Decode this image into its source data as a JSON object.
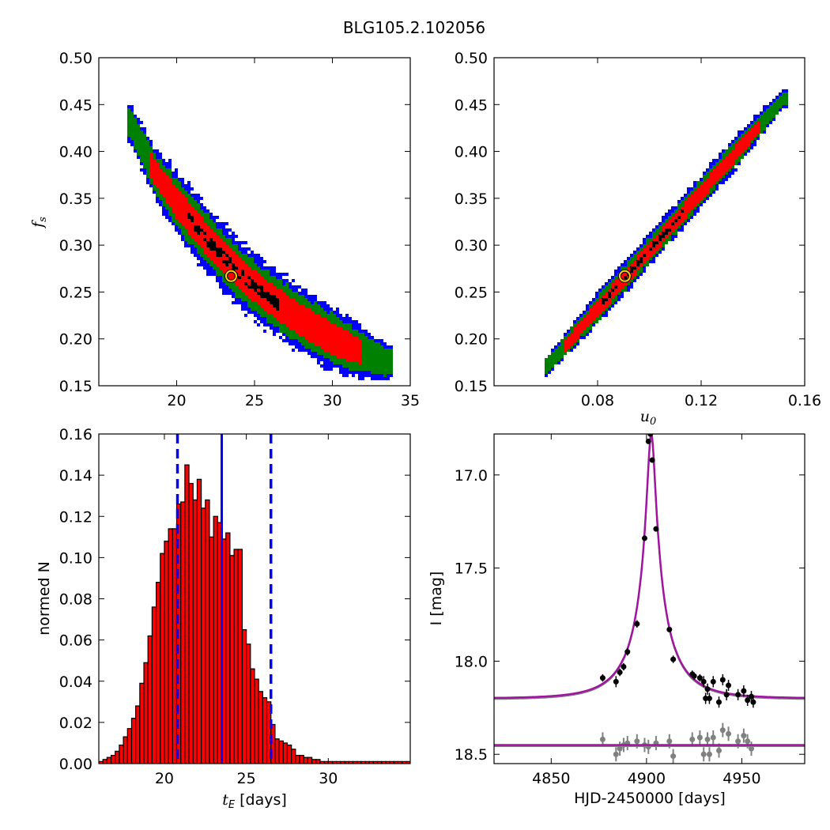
{
  "figure_title": "BLG105.2.102056",
  "colors": {
    "outer": "#0000ff",
    "mid": "#008000",
    "inner": "#ff0000",
    "core": "#000000",
    "best": "#ffd200",
    "hist": "#ff0000",
    "guide": "#0000ff",
    "model": "#a014a0",
    "data": "#000000",
    "residual": "#808080"
  },
  "chart_data": [
    {
      "type": "heatmap",
      "name": "fs-vs-tE",
      "xlim": [
        15,
        35
      ],
      "ylim": [
        0.15,
        0.5
      ],
      "xticks": [
        "20",
        "25",
        "30",
        "35"
      ],
      "xtick_values": [
        20,
        25,
        30,
        35
      ],
      "yticks": [
        "0.15",
        "0.20",
        "0.25",
        "0.30",
        "0.35",
        "0.40",
        "0.45",
        "0.50"
      ],
      "ytick_values": [
        0.15,
        0.2,
        0.25,
        0.3,
        0.35,
        0.4,
        0.45,
        0.5
      ],
      "ylabel": "f",
      "ylabel_sub": "s",
      "ridge_x": [
        17,
        18.5,
        20,
        22,
        24,
        26,
        28,
        30,
        32,
        33.5
      ],
      "ridge_y": [
        0.43,
        0.38,
        0.345,
        0.305,
        0.27,
        0.243,
        0.22,
        0.2,
        0.185,
        0.175
      ],
      "best": {
        "x": 23.5,
        "y": 0.267
      }
    },
    {
      "type": "heatmap",
      "name": "fs-vs-u0",
      "xlim": [
        0.04,
        0.16
      ],
      "ylim": [
        0.15,
        0.5
      ],
      "xticks": [
        "0.08",
        "0.12",
        "0.16"
      ],
      "xtick_values": [
        0.08,
        0.12,
        0.16
      ],
      "yticks": [
        "0.15",
        "0.20",
        "0.25",
        "0.30",
        "0.35",
        "0.40",
        "0.45",
        "0.50"
      ],
      "ytick_values": [
        0.15,
        0.2,
        0.25,
        0.3,
        0.35,
        0.4,
        0.45,
        0.5
      ],
      "xlabel": "u",
      "xlabel_sub": "0",
      "ridge_x": [
        0.06,
        0.152
      ],
      "ridge_y": [
        0.17,
        0.457
      ],
      "best": {
        "x": 0.0905,
        "y": 0.267
      }
    },
    {
      "type": "bar",
      "name": "tE-histogram",
      "xlabel_italic": "t",
      "xlabel_sub": "E",
      "xlabel_rest": " [days]",
      "ylabel": "normed N",
      "xlim": [
        16,
        35
      ],
      "ylim": [
        0,
        0.16
      ],
      "xticks": [
        "20",
        "25",
        "30"
      ],
      "xtick_values": [
        20,
        25,
        30
      ],
      "yticks": [
        "0.00",
        "0.02",
        "0.04",
        "0.06",
        "0.08",
        "0.10",
        "0.12",
        "0.14",
        "0.16"
      ],
      "ytick_values": [
        0,
        0.02,
        0.04,
        0.06,
        0.08,
        0.1,
        0.12,
        0.14,
        0.16
      ],
      "bin_start": 16,
      "bin_width": 0.25,
      "values": [
        0.001,
        0.002,
        0.003,
        0.004,
        0.006,
        0.009,
        0.013,
        0.017,
        0.022,
        0.028,
        0.039,
        0.049,
        0.062,
        0.076,
        0.088,
        0.102,
        0.108,
        0.114,
        0.114,
        0.126,
        0.127,
        0.145,
        0.136,
        0.128,
        0.138,
        0.124,
        0.128,
        0.11,
        0.12,
        0.117,
        0.109,
        0.112,
        0.101,
        0.104,
        0.104,
        0.065,
        0.058,
        0.046,
        0.041,
        0.035,
        0.032,
        0.03,
        0.019,
        0.012,
        0.011,
        0.01,
        0.009,
        0.007,
        0.004,
        0.004,
        0.003,
        0.003,
        0.002,
        0.002,
        0.001,
        0.001,
        0.001,
        0.001,
        0.001,
        0.001,
        0.001,
        0.001,
        0.001,
        0.001,
        0.001,
        0.001,
        0.001,
        0.001,
        0.001,
        0.001,
        0.001,
        0.001,
        0.001,
        0.001,
        0.001,
        0.001
      ],
      "median": 23.5,
      "lower": 20.8,
      "upper": 26.5
    },
    {
      "type": "line",
      "name": "light-curve",
      "xlabel": "HJD-2450000 [days]",
      "ylabel": "I [mag]",
      "xlim": [
        4820,
        4983
      ],
      "ylim": [
        18.55,
        16.78
      ],
      "xticks": [
        "4850",
        "4900",
        "4950"
      ],
      "xtick_values": [
        4850,
        4900,
        4950
      ],
      "yticks": [
        "17.0",
        "17.5",
        "18.0",
        "18.5"
      ],
      "ytick_values": [
        17,
        17.5,
        18,
        18.5
      ],
      "model": {
        "t0": 4902.5,
        "u0": 0.09,
        "tE": 23.5,
        "base": 18.2,
        "peak": 16.78
      },
      "points": [
        {
          "t": 4877,
          "m": 18.09,
          "e": 0.02
        },
        {
          "t": 4884,
          "m": 18.11,
          "e": 0.03
        },
        {
          "t": 4886,
          "m": 18.06,
          "e": 0.02
        },
        {
          "t": 4888,
          "m": 18.03,
          "e": 0.02
        },
        {
          "t": 4890,
          "m": 17.95,
          "e": 0.02
        },
        {
          "t": 4895,
          "m": 17.8,
          "e": 0.02
        },
        {
          "t": 4899,
          "m": 17.34,
          "e": 0.01
        },
        {
          "t": 4901,
          "m": 16.82,
          "e": 0.01
        },
        {
          "t": 4902,
          "m": 16.78,
          "e": 0.01
        },
        {
          "t": 4903,
          "m": 16.92,
          "e": 0.01
        },
        {
          "t": 4905,
          "m": 17.29,
          "e": 0.01
        },
        {
          "t": 4912,
          "m": 17.83,
          "e": 0.01
        },
        {
          "t": 4914,
          "m": 17.99,
          "e": 0.02
        },
        {
          "t": 4924,
          "m": 18.07,
          "e": 0.02
        },
        {
          "t": 4925,
          "m": 18.08,
          "e": 0.02
        },
        {
          "t": 4928,
          "m": 18.09,
          "e": 0.02
        },
        {
          "t": 4930,
          "m": 18.11,
          "e": 0.03
        },
        {
          "t": 4931,
          "m": 18.2,
          "e": 0.03
        },
        {
          "t": 4932,
          "m": 18.15,
          "e": 0.03
        },
        {
          "t": 4933,
          "m": 18.2,
          "e": 0.03
        },
        {
          "t": 4935,
          "m": 18.11,
          "e": 0.03
        },
        {
          "t": 4938,
          "m": 18.22,
          "e": 0.03
        },
        {
          "t": 4940,
          "m": 18.1,
          "e": 0.03
        },
        {
          "t": 4942,
          "m": 18.18,
          "e": 0.03
        },
        {
          "t": 4943,
          "m": 18.13,
          "e": 0.03
        },
        {
          "t": 4948,
          "m": 18.18,
          "e": 0.03
        },
        {
          "t": 4951,
          "m": 18.16,
          "e": 0.03
        },
        {
          "t": 4953,
          "m": 18.21,
          "e": 0.03
        },
        {
          "t": 4955,
          "m": 18.19,
          "e": 0.03
        },
        {
          "t": 4956,
          "m": 18.22,
          "e": 0.03
        }
      ],
      "residual_base": 18.45,
      "residuals": [
        {
          "t": 4877,
          "m": 18.42
        },
        {
          "t": 4884,
          "m": 18.5
        },
        {
          "t": 4886,
          "m": 18.47
        },
        {
          "t": 4888,
          "m": 18.45
        },
        {
          "t": 4890,
          "m": 18.44
        },
        {
          "t": 4895,
          "m": 18.43
        },
        {
          "t": 4899,
          "m": 18.45
        },
        {
          "t": 4901,
          "m": 18.46
        },
        {
          "t": 4905,
          "m": 18.44
        },
        {
          "t": 4912,
          "m": 18.43
        },
        {
          "t": 4914,
          "m": 18.51
        },
        {
          "t": 4924,
          "m": 18.42
        },
        {
          "t": 4928,
          "m": 18.41
        },
        {
          "t": 4930,
          "m": 18.5
        },
        {
          "t": 4932,
          "m": 18.42
        },
        {
          "t": 4933,
          "m": 18.5
        },
        {
          "t": 4935,
          "m": 18.41
        },
        {
          "t": 4938,
          "m": 18.48
        },
        {
          "t": 4940,
          "m": 18.37
        },
        {
          "t": 4943,
          "m": 18.39
        },
        {
          "t": 4948,
          "m": 18.43
        },
        {
          "t": 4951,
          "m": 18.4
        },
        {
          "t": 4953,
          "m": 18.43
        },
        {
          "t": 4955,
          "m": 18.47
        }
      ]
    }
  ]
}
